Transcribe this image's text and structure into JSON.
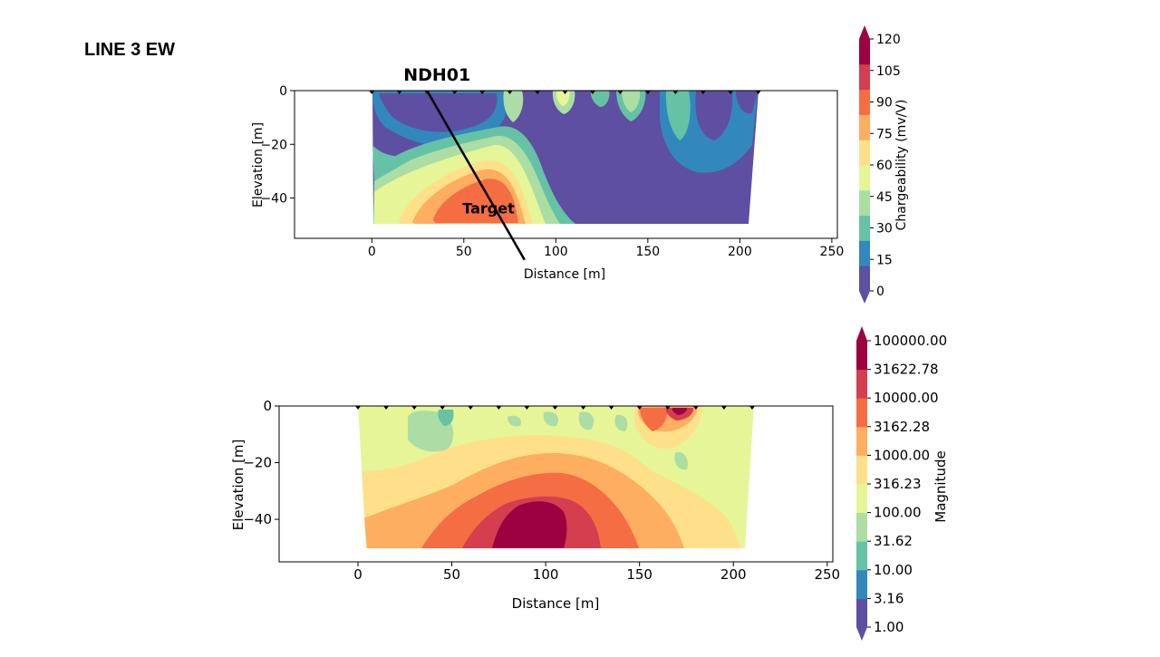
{
  "slide_title": "LINE 3 EW",
  "colors": {
    "chargeability_scale": [
      "#5e4fa2",
      "#3288bd",
      "#66c2a5",
      "#abdda4",
      "#e6f598",
      "#fee08b",
      "#fdae61",
      "#f46d43",
      "#d53e4f",
      "#9e0142"
    ],
    "magnitude_scale": [
      "#5e4fa2",
      "#3288bd",
      "#66c2a5",
      "#abdda4",
      "#e6f598",
      "#fee08b",
      "#fdae61",
      "#f46d43",
      "#d53e4f",
      "#9e0142"
    ]
  },
  "chart_data": [
    {
      "type": "heatmap",
      "xlabel": "Distance [m]",
      "ylabel": "Elevation [m]",
      "xlim": [
        -42,
        253
      ],
      "ylim": [
        -55,
        0
      ],
      "x_ticks": [
        "0",
        "50",
        "100",
        "150",
        "200",
        "250"
      ],
      "y_ticks": [
        "0",
        "−20",
        "−40"
      ],
      "electrodes_x": [
        0,
        15,
        30,
        45,
        60,
        75,
        90,
        105,
        120,
        135,
        150,
        165,
        180,
        195,
        210
      ],
      "annotations": [
        {
          "label": "NDH01",
          "type": "drillhole",
          "collar": [
            30,
            0
          ],
          "end": [
            83,
            -63
          ]
        },
        {
          "label": "Target",
          "at": [
            65,
            -44
          ]
        }
      ],
      "colorbar": {
        "label": "Chargeability (mv/V)",
        "ticks": [
          "120",
          "105",
          "90",
          "75",
          "60",
          "45",
          "30",
          "15",
          "0"
        ],
        "range": [
          0,
          120
        ]
      }
    },
    {
      "type": "heatmap",
      "xlabel": "Distance [m]",
      "ylabel": "Elevation [m]",
      "xlim": [
        -42,
        253
      ],
      "ylim": [
        -55,
        0
      ],
      "x_ticks": [
        "0",
        "50",
        "100",
        "150",
        "200",
        "250"
      ],
      "y_ticks": [
        "0",
        "−20",
        "−40"
      ],
      "electrodes_x": [
        0,
        15,
        30,
        45,
        60,
        75,
        90,
        105,
        120,
        135,
        150,
        165,
        180,
        195,
        210
      ],
      "colorbar": {
        "label": "Magnitude",
        "ticks": [
          "100000.00",
          "31622.78",
          "10000.00",
          "3162.28",
          "1000.00",
          "316.23",
          "100.00",
          "31.62",
          "10.00",
          "3.16",
          "1.00"
        ],
        "scale": "log",
        "range": [
          1,
          100000
        ]
      }
    }
  ]
}
